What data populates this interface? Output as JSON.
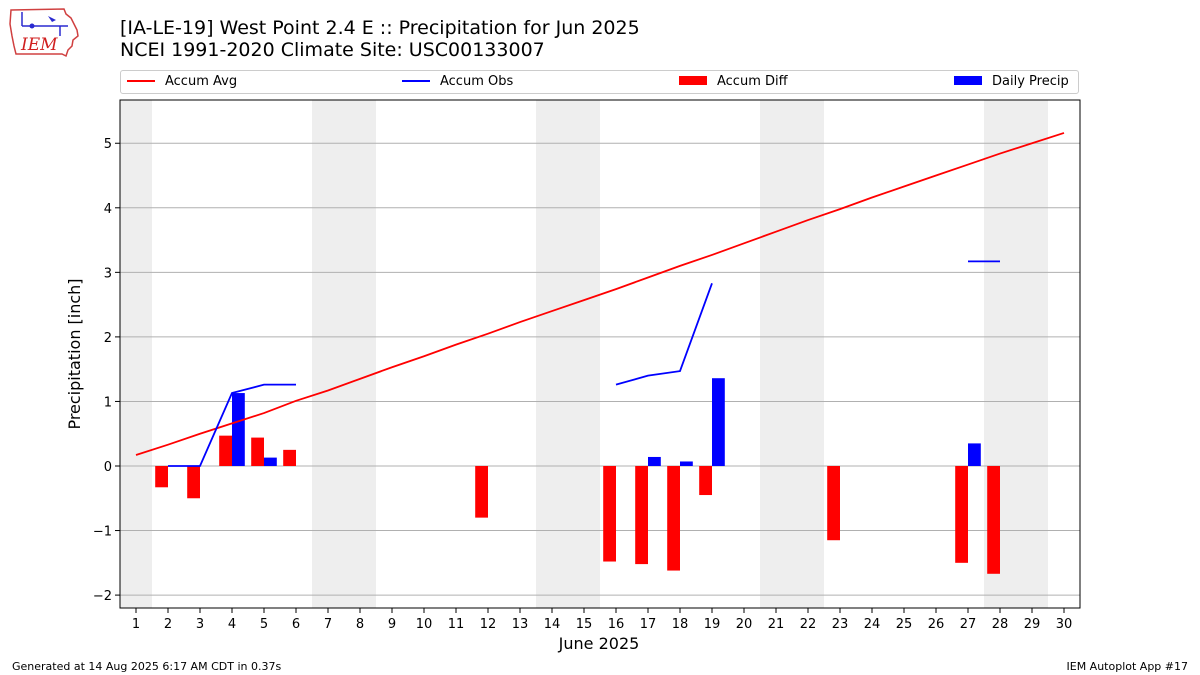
{
  "logo_text": "IEM",
  "title_line1": "[IA-LE-19] West Point 2.4 E :: Precipitation for Jun 2025",
  "title_line2": "NCEI 1991-2020 Climate Site: USC00133007",
  "footer_left": "Generated at 14 Aug 2025 6:17 AM CDT in 0.37s",
  "footer_right": "IEM Autoplot App #17",
  "colors": {
    "accum_avg": "#ff0000",
    "accum_obs": "#0000ff",
    "accum_diff": "#ff0000",
    "daily_precip": "#0000ff",
    "weekend_shade": "#eeeeee",
    "grid": "#b0b0b0"
  },
  "chart_data": {
    "type": "bar",
    "title": "[IA-LE-19] West Point 2.4 E :: Precipitation for Jun 2025",
    "subtitle": "NCEI 1991-2020 Climate Site: USC00133007",
    "xlabel": "June 2025",
    "ylabel": "Precipitation [inch]",
    "xlim": [
      0.5,
      30.5
    ],
    "ylim": [
      -2.2,
      5.67
    ],
    "x_ticks": [
      1,
      2,
      3,
      4,
      5,
      6,
      7,
      8,
      9,
      10,
      11,
      12,
      13,
      14,
      15,
      16,
      17,
      18,
      19,
      20,
      21,
      22,
      23,
      24,
      25,
      26,
      27,
      28,
      29,
      30
    ],
    "y_ticks": [
      -2,
      -1,
      0,
      1,
      2,
      3,
      4,
      5
    ],
    "y_tick_labels": [
      "−2",
      "−1",
      "0",
      "1",
      "2",
      "3",
      "4",
      "5"
    ],
    "grid": "horizontal",
    "legend_position": "top",
    "weekend_shading": [
      [
        0.5,
        1.5
      ],
      [
        6.5,
        8.5
      ],
      [
        13.5,
        15.5
      ],
      [
        20.5,
        22.5
      ],
      [
        27.5,
        29.5
      ]
    ],
    "series": [
      {
        "name": "Accum Avg",
        "type": "line",
        "x": [
          1,
          2,
          3,
          4,
          5,
          6,
          7,
          8,
          9,
          10,
          11,
          12,
          13,
          14,
          15,
          16,
          17,
          18,
          19,
          20,
          21,
          22,
          23,
          24,
          25,
          26,
          27,
          28,
          29,
          30
        ],
        "values": [
          0.17,
          0.33,
          0.5,
          0.66,
          0.82,
          1.01,
          1.17,
          1.35,
          1.53,
          1.7,
          1.88,
          2.05,
          2.23,
          2.4,
          2.57,
          2.74,
          2.92,
          3.1,
          3.27,
          3.45,
          3.63,
          3.81,
          3.98,
          4.16,
          4.33,
          4.5,
          4.67,
          4.84,
          5.0,
          5.16
        ]
      },
      {
        "name": "Accum Obs",
        "type": "line",
        "segments": [
          {
            "x": [
              2,
              3,
              4,
              5,
              6
            ],
            "values": [
              0.0,
              0.0,
              1.13,
              1.26,
              1.26
            ]
          },
          {
            "x": [
              16,
              17,
              18,
              19
            ],
            "values": [
              1.26,
              1.4,
              1.47,
              2.83
            ]
          },
          {
            "x": [
              27,
              28
            ],
            "values": [
              3.17,
              3.17
            ]
          }
        ]
      },
      {
        "name": "Accum Diff",
        "type": "bar",
        "x": [
          2,
          3,
          4,
          5,
          6,
          12,
          16,
          17,
          18,
          19,
          23,
          27,
          28
        ],
        "values": [
          -0.33,
          -0.5,
          0.47,
          0.44,
          0.25,
          -0.8,
          -1.48,
          -1.52,
          -1.62,
          -0.45,
          -1.15,
          -1.5,
          -1.67
        ]
      },
      {
        "name": "Daily Precip",
        "type": "bar",
        "x": [
          4,
          5,
          17,
          18,
          19,
          27
        ],
        "values": [
          1.13,
          0.13,
          0.14,
          0.07,
          1.36,
          0.35
        ]
      }
    ]
  }
}
